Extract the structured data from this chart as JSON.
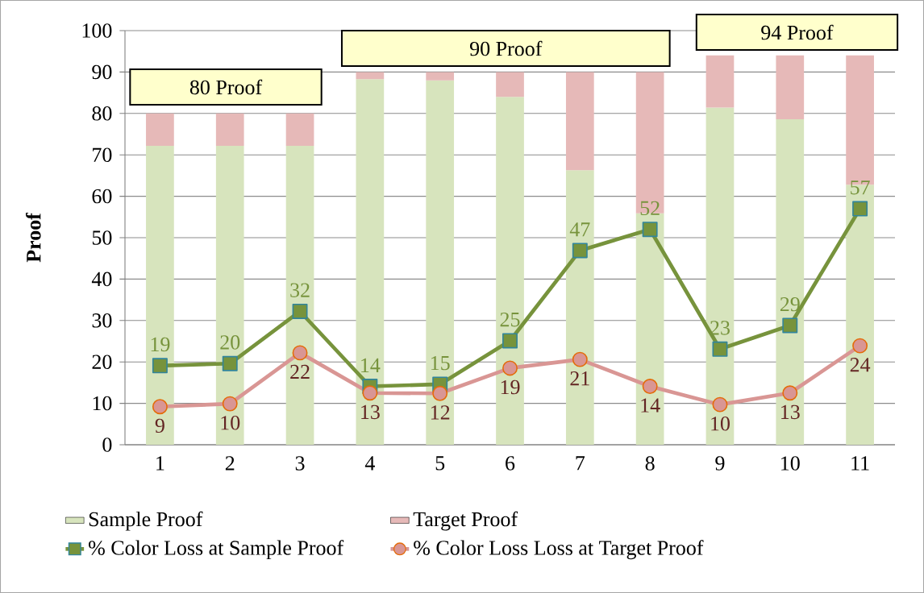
{
  "chart_data": {
    "type": "bar",
    "stacked": true,
    "ylabel": "Proof",
    "categories": [
      "1",
      "2",
      "3",
      "4",
      "5",
      "6",
      "7",
      "8",
      "9",
      "10",
      "11"
    ],
    "ylim": [
      0,
      100
    ],
    "yticks": [
      0,
      10,
      20,
      30,
      40,
      50,
      60,
      70,
      80,
      90,
      100
    ],
    "grid": "y",
    "legend": "bottom",
    "annotations": [
      "80 Proof",
      "90 Proof",
      "94 Proof"
    ],
    "series": [
      {
        "name": "Sample Proof",
        "type": "bar",
        "color": "#d7e4bd",
        "values": [
          72.2,
          72.2,
          72.2,
          88.3,
          88.0,
          84.0,
          66.3,
          55.9,
          81.4,
          78.6,
          62.8
        ]
      },
      {
        "name": "Target Proof",
        "type": "bar",
        "color": "#e6b9b8",
        "values": [
          7.8,
          7.8,
          7.8,
          1.7,
          2.0,
          6.0,
          23.7,
          34.1,
          12.6,
          15.4,
          31.2
        ]
      },
      {
        "name": "% Color Loss at Sample Proof",
        "type": "line",
        "marker": "square",
        "color": "#77933c",
        "values": [
          19.1,
          19.6,
          32.2,
          14.1,
          14.6,
          25.1,
          46.9,
          52.0,
          23.1,
          28.8,
          57.0
        ],
        "value_labels": [
          "19",
          "20",
          "32",
          "14",
          "15",
          "25",
          "47",
          "52",
          "23",
          "29",
          "57"
        ]
      },
      {
        "name": "% Color Loss Loss at Target Proof",
        "type": "line",
        "marker": "circle",
        "color": "#d99694",
        "values": [
          9.2,
          9.9,
          22.2,
          12.5,
          12.4,
          18.5,
          20.6,
          14.1,
          9.7,
          12.5,
          23.9
        ],
        "value_labels": [
          "9",
          "10",
          "22",
          "13",
          "12",
          "19",
          "21",
          "14",
          "10",
          "13",
          "24"
        ]
      }
    ]
  }
}
